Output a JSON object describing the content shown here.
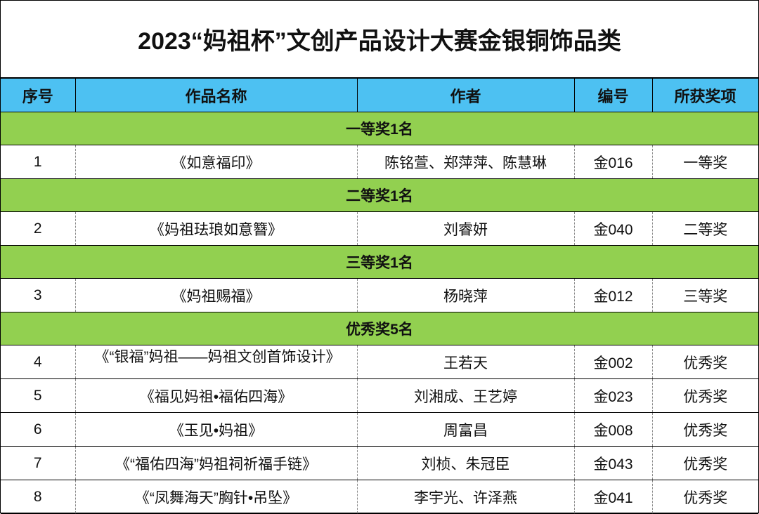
{
  "title": "2023“妈祖杯”文创产品设计大赛金银铜饰品类",
  "table": {
    "header": [
      "序号",
      "作品名称",
      "作者",
      "编号",
      "所获奖项"
    ],
    "sections": [
      {
        "label": "一等奖1名",
        "rows": [
          [
            "1",
            "《如意福印》",
            "陈铭萱、郑萍萍、陈慧琳",
            "金016",
            "一等奖"
          ]
        ]
      },
      {
        "label": "二等奖1名",
        "rows": [
          [
            "2",
            "《妈祖珐琅如意簪》",
            "刘睿妍",
            "金040",
            "二等奖"
          ]
        ]
      },
      {
        "label": "三等奖1名",
        "rows": [
          [
            "3",
            "《妈祖赐福》",
            "杨晓萍",
            "金012",
            "三等奖"
          ]
        ]
      },
      {
        "label": "优秀奖5名",
        "rows": [
          [
            "4",
            "《“银福”妈祖——妈祖文创首饰设计》",
            "王若天",
            "金002",
            "优秀奖"
          ],
          [
            "5",
            "《福见妈祖•福佑四海》",
            "刘湘成、王艺婷",
            "金023",
            "优秀奖"
          ],
          [
            "6",
            "《玉见•妈祖》",
            "周富昌",
            "金008",
            "优秀奖"
          ],
          [
            "7",
            "《“福佑四海”妈祖祠祈福手链》",
            "刘桢、朱冠臣",
            "金043",
            "优秀奖"
          ],
          [
            "8",
            "《“凤舞海天”胸针•吊坠》",
            "李宇光、许泽燕",
            "金041",
            "优秀奖"
          ]
        ]
      }
    ]
  }
}
